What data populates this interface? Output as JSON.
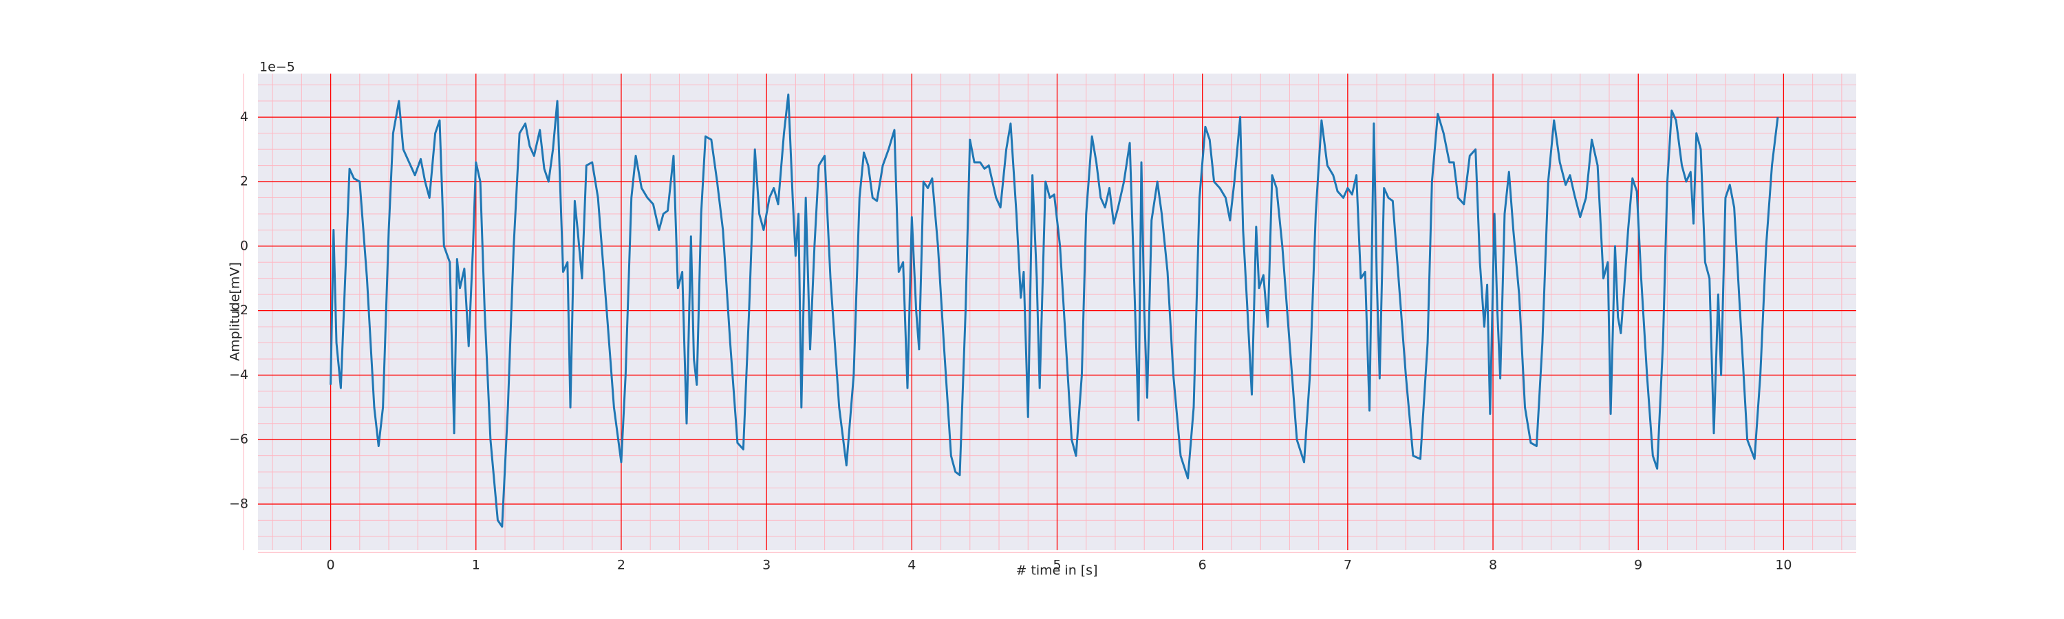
{
  "chart_data": {
    "type": "line",
    "xlabel": "# time in [s]",
    "ylabel": "Amplitude[mV]",
    "y_offset_label": "1e−5",
    "xlim": [
      -0.5,
      10.5
    ],
    "ylim": [
      -9.43,
      5.35
    ],
    "xticks": [
      0,
      1,
      2,
      3,
      4,
      5,
      6,
      7,
      8,
      9,
      10
    ],
    "yticks": [
      {
        "value": -8,
        "label": "−8"
      },
      {
        "value": -6,
        "label": "−6"
      },
      {
        "value": -4,
        "label": "−4"
      },
      {
        "value": -2,
        "label": "−2"
      },
      0,
      2,
      4
    ],
    "grid": true,
    "minor_grid": true,
    "grid_color": "#ff0000",
    "minor_grid_color": "#ffb6c1",
    "background": "#eaeaf2",
    "color": "#1f77b4",
    "x": [
      0.0,
      0.02,
      0.04,
      0.07,
      0.1,
      0.13,
      0.16,
      0.2,
      0.25,
      0.3,
      0.33,
      0.36,
      0.4,
      0.43,
      0.47,
      0.5,
      0.55,
      0.58,
      0.62,
      0.65,
      0.68,
      0.72,
      0.75,
      0.78,
      0.82,
      0.85,
      0.87,
      0.89,
      0.92,
      0.95,
      0.98,
      1.0,
      1.03,
      1.06,
      1.1,
      1.15,
      1.18,
      1.22,
      1.26,
      1.3,
      1.34,
      1.37,
      1.4,
      1.44,
      1.47,
      1.5,
      1.53,
      1.56,
      1.6,
      1.63,
      1.65,
      1.68,
      1.7,
      1.73,
      1.76,
      1.8,
      1.84,
      1.9,
      1.95,
      2.0,
      2.03,
      2.07,
      2.1,
      2.14,
      2.18,
      2.22,
      2.26,
      2.29,
      2.32,
      2.36,
      2.39,
      2.42,
      2.45,
      2.48,
      2.5,
      2.52,
      2.55,
      2.58,
      2.62,
      2.66,
      2.7,
      2.75,
      2.8,
      2.84,
      2.88,
      2.92,
      2.95,
      2.98,
      3.02,
      3.05,
      3.08,
      3.12,
      3.15,
      3.18,
      3.2,
      3.22,
      3.24,
      3.27,
      3.3,
      3.33,
      3.36,
      3.4,
      3.44,
      3.5,
      3.55,
      3.6,
      3.64,
      3.67,
      3.7,
      3.73,
      3.76,
      3.8,
      3.84,
      3.88,
      3.91,
      3.94,
      3.97,
      4.0,
      4.03,
      4.05,
      4.08,
      4.11,
      4.14,
      4.18,
      4.22,
      4.27,
      4.3,
      4.33,
      4.37,
      4.4,
      4.43,
      4.47,
      4.5,
      4.53,
      4.58,
      4.61,
      4.65,
      4.68,
      4.72,
      4.75,
      4.77,
      4.8,
      4.83,
      4.86,
      4.88,
      4.92,
      4.95,
      4.98,
      5.02,
      5.06,
      5.1,
      5.13,
      5.17,
      5.2,
      5.24,
      5.27,
      5.3,
      5.33,
      5.36,
      5.39,
      5.42,
      5.46,
      5.5,
      5.53,
      5.56,
      5.58,
      5.6,
      5.62,
      5.65,
      5.69,
      5.72,
      5.76,
      5.8,
      5.85,
      5.9,
      5.94,
      5.98,
      6.02,
      6.05,
      6.08,
      6.12,
      6.16,
      6.19,
      6.22,
      6.26,
      6.28,
      6.31,
      6.34,
      6.37,
      6.39,
      6.42,
      6.45,
      6.48,
      6.51,
      6.55,
      6.6,
      6.65,
      6.7,
      6.74,
      6.78,
      6.82,
      6.86,
      6.9,
      6.93,
      6.97,
      7.0,
      7.03,
      7.06,
      7.09,
      7.12,
      7.15,
      7.18,
      7.2,
      7.22,
      7.25,
      7.28,
      7.31,
      7.35,
      7.4,
      7.45,
      7.5,
      7.55,
      7.58,
      7.62,
      7.66,
      7.7,
      7.73,
      7.76,
      7.8,
      7.84,
      7.88,
      7.91,
      7.94,
      7.96,
      7.98,
      8.01,
      8.03,
      8.05,
      8.08,
      8.11,
      8.14,
      8.18,
      8.22,
      8.26,
      8.3,
      8.34,
      8.38,
      8.42,
      8.46,
      8.5,
      8.53,
      8.56,
      8.6,
      8.64,
      8.68,
      8.72,
      8.76,
      8.79,
      8.81,
      8.84,
      8.86,
      8.88,
      8.9,
      8.93,
      8.96,
      8.99,
      9.02,
      9.06,
      9.1,
      9.13,
      9.17,
      9.2,
      9.23,
      9.26,
      9.3,
      9.33,
      9.36,
      9.38,
      9.4,
      9.43,
      9.46,
      9.49,
      9.52,
      9.55,
      9.57,
      9.6,
      9.63,
      9.66,
      9.7,
      9.75,
      9.8,
      9.84,
      9.88,
      9.92,
      9.96
    ],
    "values": [
      -4.3,
      0.5,
      -3,
      -4.4,
      -1,
      2.4,
      2.1,
      2.0,
      -1,
      -5,
      -6.2,
      -5,
      0.5,
      3.5,
      4.5,
      3,
      2.5,
      2.2,
      2.7,
      2,
      1.5,
      3.5,
      3.9,
      0,
      -0.5,
      -5.8,
      -0.4,
      -1.3,
      -0.7,
      -3.1,
      0,
      2.6,
      2,
      -2,
      -6,
      -8.5,
      -8.7,
      -5,
      0,
      3.5,
      3.8,
      3.1,
      2.8,
      3.6,
      2.4,
      2,
      3,
      4.5,
      -0.8,
      -0.5,
      -5,
      1.4,
      0.5,
      -1,
      2.5,
      2.6,
      1.5,
      -2,
      -5,
      -6.7,
      -4,
      1.5,
      2.8,
      1.8,
      1.5,
      1.3,
      0.5,
      1,
      1.1,
      2.8,
      -1.3,
      -0.8,
      -5.5,
      0.3,
      -3.5,
      -4.3,
      1,
      3.4,
      3.3,
      2,
      0.5,
      -3,
      -6.1,
      -6.3,
      -2,
      3,
      1,
      0.5,
      1.5,
      1.8,
      1.3,
      3.5,
      4.7,
      1.5,
      -0.3,
      1,
      -5,
      1.5,
      -3.2,
      0,
      2.5,
      2.8,
      -1,
      -5,
      -6.8,
      -4,
      1.5,
      2.9,
      2.5,
      1.5,
      1.4,
      2.5,
      3,
      3.6,
      -0.8,
      -0.5,
      -4.4,
      0.9,
      -2,
      -3.2,
      2,
      1.8,
      2.1,
      0,
      -3,
      -6.5,
      -7,
      -7.1,
      -2,
      3.3,
      2.6,
      2.6,
      2.4,
      2.5,
      1.5,
      1.2,
      3,
      3.8,
      1,
      -1.6,
      -0.8,
      -5.3,
      2.2,
      -1,
      -4.4,
      2,
      1.5,
      1.6,
      0,
      -3,
      -6,
      -6.5,
      -4,
      1,
      3.4,
      2.6,
      1.5,
      1.2,
      1.8,
      0.7,
      1.2,
      2,
      3.2,
      -1,
      -5.4,
      2.6,
      -2,
      -4.7,
      0.8,
      2,
      1,
      -0.8,
      -4,
      -6.5,
      -7.2,
      -5,
      1.5,
      3.7,
      3.3,
      2,
      1.8,
      1.5,
      0.8,
      2,
      4,
      0.5,
      -2,
      -4.6,
      0.6,
      -1.3,
      -0.9,
      -2.5,
      2.2,
      1.8,
      0,
      -3,
      -6,
      -6.7,
      -4,
      1,
      3.9,
      2.5,
      2.2,
      1.7,
      1.5,
      1.8,
      1.6,
      2.2,
      -1,
      -0.8,
      -5.1,
      3.8,
      -1,
      -4.1,
      1.8,
      1.5,
      1.4,
      -1,
      -4,
      -6.5,
      -6.6,
      -3,
      2,
      4.1,
      3.5,
      2.6,
      2.6,
      1.5,
      1.3,
      2.8,
      3,
      -0.5,
      -2.5,
      -1.2,
      -5.2,
      1,
      -2,
      -4.1,
      1,
      2.3,
      0.5,
      -1.5,
      -5,
      -6.1,
      -6.2,
      -3,
      2,
      3.9,
      2.6,
      1.9,
      2.2,
      1.6,
      0.9,
      1.5,
      3.3,
      2.5,
      -1,
      -0.5,
      -5.2,
      0,
      -2.2,
      -2.7,
      -1.5,
      0.5,
      2.1,
      1.7,
      -1,
      -4,
      -6.5,
      -6.9,
      -3,
      2,
      4.2,
      3.9,
      2.5,
      2,
      2.3,
      0.7,
      3.5,
      3,
      -0.5,
      -1,
      -5.8,
      -1.5,
      -4,
      1.5,
      1.9,
      1.2,
      -2,
      -6,
      -6.6,
      -4,
      0,
      2.5,
      4.0
    ]
  }
}
